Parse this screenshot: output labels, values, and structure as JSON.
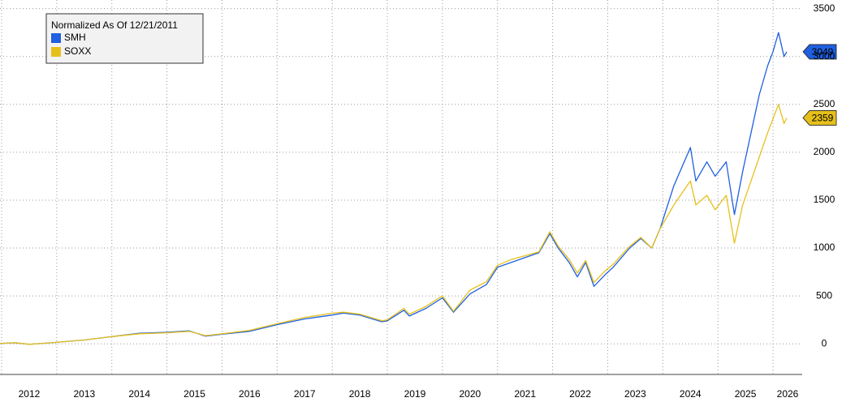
{
  "chart_data": {
    "type": "line",
    "legend_title": "Normalized As Of 12/21/2011",
    "x": [
      2011.97,
      2012.0,
      2012.25,
      2012.5,
      2012.75,
      2013.0,
      2013.5,
      2014.0,
      2014.5,
      2015.0,
      2015.4,
      2015.7,
      2016.0,
      2016.5,
      2017.0,
      2017.5,
      2018.0,
      2018.2,
      2018.5,
      2018.9,
      2019.0,
      2019.3,
      2019.4,
      2019.7,
      2020.0,
      2020.2,
      2020.5,
      2020.8,
      2021.0,
      2021.25,
      2021.5,
      2021.75,
      2021.95,
      2022.1,
      2022.3,
      2022.45,
      2022.6,
      2022.75,
      2022.95,
      2023.1,
      2023.4,
      2023.6,
      2023.8,
      2023.95,
      2024.2,
      2024.5,
      2024.6,
      2024.8,
      2024.95,
      2025.15,
      2025.3,
      2025.45,
      2025.6,
      2025.75,
      2025.9,
      2026.0,
      2026.1,
      2026.2,
      2026.25
    ],
    "series": [
      {
        "name": "SMH",
        "color": "#1f5fe0",
        "values": [
          0,
          5,
          10,
          -5,
          5,
          15,
          40,
          75,
          110,
          120,
          135,
          80,
          100,
          130,
          200,
          260,
          300,
          320,
          300,
          230,
          240,
          350,
          290,
          370,
          480,
          330,
          520,
          620,
          800,
          850,
          900,
          950,
          1150,
          1000,
          850,
          700,
          850,
          600,
          720,
          800,
          1000,
          1100,
          1000,
          1200,
          1650,
          2050,
          1700,
          1900,
          1750,
          1900,
          1350,
          1800,
          2200,
          2600,
          2900,
          3050,
          3250,
          3000,
          3049
        ]
      },
      {
        "name": "SOXX",
        "color": "#e5c01a",
        "values": [
          0,
          5,
          12,
          -5,
          5,
          15,
          40,
          75,
          105,
          115,
          130,
          85,
          105,
          140,
          210,
          275,
          320,
          330,
          310,
          240,
          250,
          370,
          310,
          390,
          500,
          340,
          560,
          650,
          820,
          880,
          920,
          960,
          1170,
          1020,
          880,
          740,
          870,
          640,
          760,
          830,
          1020,
          1110,
          1000,
          1200,
          1450,
          1700,
          1450,
          1550,
          1400,
          1550,
          1050,
          1450,
          1700,
          1950,
          2200,
          2350,
          2500,
          2300,
          2359
        ]
      }
    ],
    "xlim": [
      2011.97,
      2026.53
    ],
    "xticks": [
      2012,
      2013,
      2014,
      2015,
      2016,
      2017,
      2018,
      2019,
      2020,
      2021,
      2022,
      2023,
      2024,
      2025,
      2026
    ],
    "ylim": [
      -320,
      3590
    ],
    "yticks": [
      0,
      500,
      1000,
      1500,
      2000,
      2500,
      3000,
      3500
    ],
    "grid": true
  }
}
